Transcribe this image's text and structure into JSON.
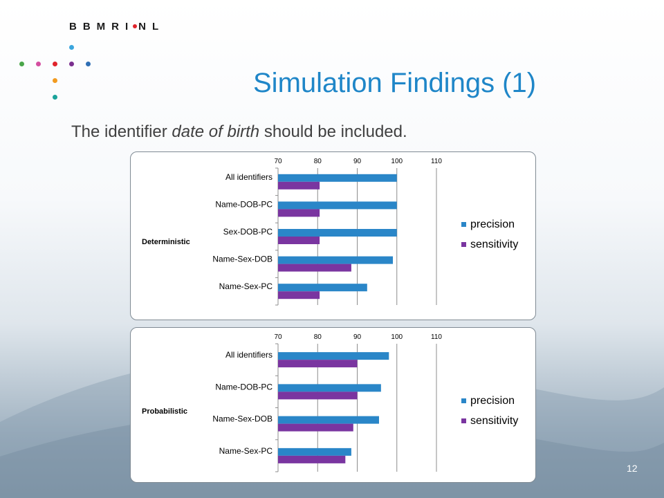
{
  "logo": {
    "text_left": "BBMRI",
    "text_right": "NL"
  },
  "slide": {
    "title": "Simulation Findings (1)",
    "subtitle_before": "The identifier ",
    "subtitle_emph": "date of birth",
    "subtitle_after": " should be included.",
    "page_number": "12"
  },
  "colors": {
    "precision": "#2a86c8",
    "sensitivity": "#7a35a0",
    "title": "#1f86c8"
  },
  "chart_data": [
    {
      "type": "bar",
      "orientation": "horizontal",
      "group_label": "Deterministic",
      "categories": [
        "All identifiers",
        "Name-DOB-PC",
        "Sex-DOB-PC",
        "Name-Sex-DOB",
        "Name-Sex-PC"
      ],
      "series": [
        {
          "name": "precision",
          "values": [
            100,
            100,
            100,
            99,
            92.5
          ]
        },
        {
          "name": "sensitivity",
          "values": [
            80.5,
            80.5,
            80.5,
            88.5,
            80.5
          ]
        }
      ],
      "xlim": [
        70,
        110
      ],
      "xticks": [
        70,
        80,
        90,
        100,
        110
      ],
      "grid": true,
      "legend": "right"
    },
    {
      "type": "bar",
      "orientation": "horizontal",
      "group_label": "Probabilistic",
      "categories": [
        "All identifiers",
        "Name-DOB-PC",
        "Name-Sex-DOB",
        "Name-Sex-PC"
      ],
      "series": [
        {
          "name": "precision",
          "values": [
            98,
            96,
            95.5,
            88.5
          ]
        },
        {
          "name": "sensitivity",
          "values": [
            90,
            90,
            89,
            87
          ]
        }
      ],
      "xlim": [
        70,
        110
      ],
      "xticks": [
        70,
        80,
        90,
        100,
        110
      ],
      "grid": true,
      "legend": "right"
    }
  ]
}
